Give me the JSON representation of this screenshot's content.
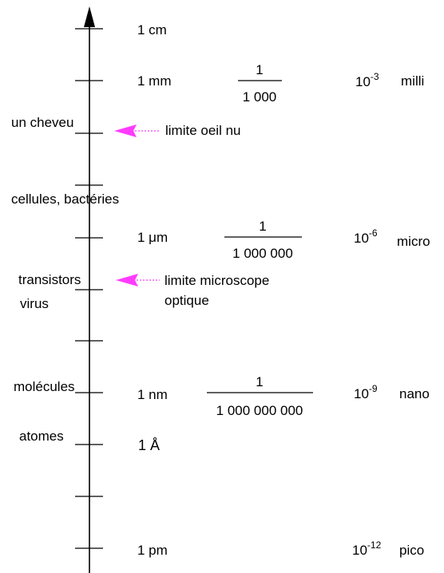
{
  "colors": {
    "axis": "#000000",
    "object_label": "#1a3fd0",
    "highlight_label": "#ff2a00",
    "limit": "#ff3bff"
  },
  "scale": [
    {
      "unit": "1 cm"
    },
    {
      "unit": "1 mm",
      "numerator": "1",
      "denominator": "1 000",
      "base": "10",
      "exponent": "-3",
      "prefix": "milli"
    },
    {
      "unit": "1 μm",
      "numerator": "1",
      "denominator": "1 000 000",
      "base": "10",
      "exponent": "-6",
      "prefix": "micro"
    },
    {
      "unit": "1 nm",
      "numerator": "1",
      "denominator": "1 000 000 000",
      "base": "10",
      "exponent": "-9",
      "prefix": "nano"
    },
    {
      "unit": "1 Å"
    },
    {
      "unit": "1 pm",
      "base": "10",
      "exponent": "-12",
      "prefix": "pico"
    }
  ],
  "objects": [
    {
      "label": "un cheveu",
      "color": "#1a3fd0"
    },
    {
      "label": "cellules, bactéries",
      "color": "#1a3fd0"
    },
    {
      "label": "transistors",
      "color": "#ff2a00"
    },
    {
      "label": "virus",
      "color": "#1a3fd0"
    },
    {
      "label": "molécules",
      "color": "#1a3fd0"
    },
    {
      "label": "atomes",
      "color": "#1a3fd0"
    }
  ],
  "limits": [
    {
      "lines": [
        "limite oeil nu"
      ]
    },
    {
      "lines": [
        "limite microscope",
        "optique"
      ]
    }
  ]
}
